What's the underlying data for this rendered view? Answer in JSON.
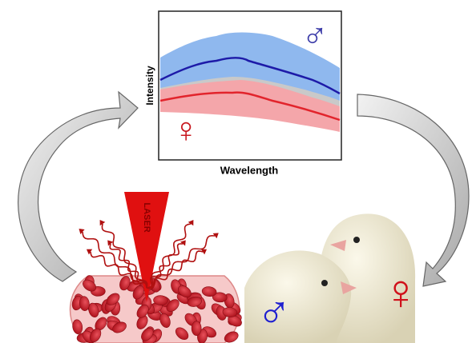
{
  "spectrum_panel": {
    "y_label": "Intensity",
    "x_label": "Wavelength",
    "male_symbol": "♂",
    "female_symbol": "♀"
  },
  "laser_label": "LASER",
  "chicks": {
    "male_symbol": "♂",
    "female_symbol": "♀"
  }
}
